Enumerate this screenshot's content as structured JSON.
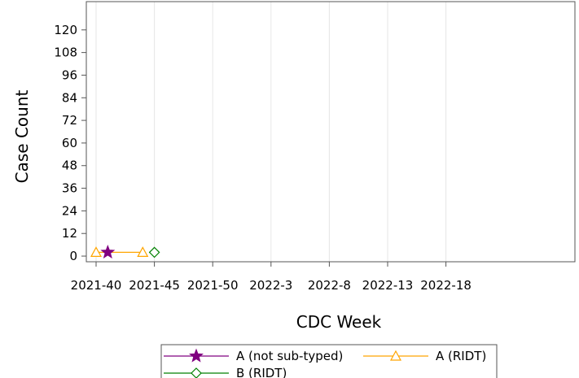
{
  "chart_data": {
    "type": "line",
    "xlabel": "CDC Week",
    "ylabel": "Case Count",
    "x_ticks": [
      "2021-40",
      "2021-45",
      "2021-50",
      "2022-3",
      "2022-8",
      "2022-13",
      "2022-18"
    ],
    "y_ticks": [
      0,
      12,
      24,
      36,
      48,
      60,
      72,
      84,
      96,
      108,
      120
    ],
    "ylim": [
      -3,
      135
    ],
    "grid": "vertical",
    "legend_position": "bottom",
    "series": [
      {
        "name": "A (not sub-typed)",
        "color": "#800080",
        "marker": "star",
        "points": [
          {
            "x": "2021-41",
            "y": 2
          }
        ]
      },
      {
        "name": "A (RIDT)",
        "color": "#FFA500",
        "marker": "triangle",
        "points": [
          {
            "x": "2021-40",
            "y": 2
          },
          {
            "x": "2021-44",
            "y": 2
          }
        ]
      },
      {
        "name": "B (RIDT)",
        "color": "#008000",
        "marker": "diamond",
        "points": [
          {
            "x": "2021-45",
            "y": 2
          }
        ]
      }
    ]
  }
}
